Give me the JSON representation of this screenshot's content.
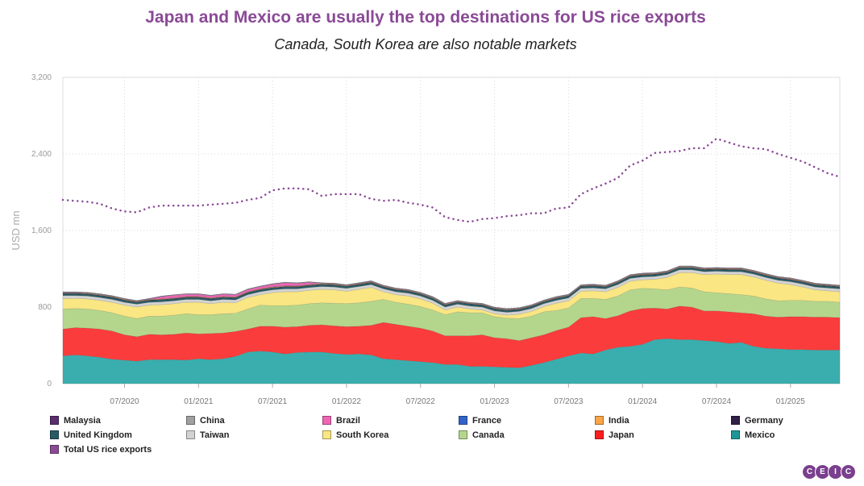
{
  "header": {
    "title": "Japan and Mexico are usually the top destinations for US rice exports",
    "subtitle": "Canada, South Korea are also notable markets"
  },
  "logo": [
    "C",
    "E",
    "I",
    "C"
  ],
  "chart_data": {
    "type": "area",
    "stacked": true,
    "ylabel": "USD mn",
    "ylim": [
      0,
      3200
    ],
    "yticks": [
      0,
      800,
      1600,
      2400,
      3200
    ],
    "ytick_labels": [
      "0",
      "800",
      "1,600",
      "2,400",
      "3,200"
    ],
    "xlim": [
      "2020-02",
      "2025-05"
    ],
    "xticks": [
      "07/2020",
      "01/2021",
      "07/2021",
      "01/2022",
      "07/2022",
      "01/2023",
      "07/2023",
      "01/2024",
      "07/2024",
      "01/2025"
    ],
    "grid": true,
    "legend_position": "bottom",
    "x": [
      "2020-02",
      "2020-03",
      "2020-04",
      "2020-05",
      "2020-06",
      "2020-07",
      "2020-08",
      "2020-09",
      "2020-10",
      "2020-11",
      "2020-12",
      "2021-01",
      "2021-02",
      "2021-03",
      "2021-04",
      "2021-05",
      "2021-06",
      "2021-07",
      "2021-08",
      "2021-09",
      "2021-10",
      "2021-11",
      "2021-12",
      "2022-01",
      "2022-02",
      "2022-03",
      "2022-04",
      "2022-05",
      "2022-06",
      "2022-07",
      "2022-08",
      "2022-09",
      "2022-10",
      "2022-11",
      "2022-12",
      "2023-01",
      "2023-02",
      "2023-03",
      "2023-04",
      "2023-05",
      "2023-06",
      "2023-07",
      "2023-08",
      "2023-09",
      "2023-10",
      "2023-11",
      "2023-12",
      "2024-01",
      "2024-02",
      "2024-03",
      "2024-04",
      "2024-05",
      "2024-06",
      "2024-07",
      "2024-08",
      "2024-09",
      "2024-10",
      "2024-11",
      "2024-12",
      "2025-01",
      "2025-02",
      "2025-03",
      "2025-04",
      "2025-05"
    ],
    "series": [
      {
        "name": "Mexico",
        "color": "#3aaeae",
        "values": [
          290,
          300,
          290,
          275,
          255,
          245,
          235,
          250,
          250,
          250,
          245,
          260,
          250,
          260,
          285,
          330,
          340,
          330,
          310,
          325,
          330,
          330,
          315,
          305,
          310,
          300,
          260,
          250,
          240,
          230,
          220,
          200,
          200,
          180,
          180,
          175,
          170,
          165,
          190,
          220,
          255,
          290,
          320,
          310,
          350,
          380,
          390,
          410,
          460,
          470,
          460,
          460,
          450,
          440,
          420,
          430,
          390,
          370,
          365,
          355,
          355,
          350,
          350,
          350
        ]
      },
      {
        "name": "Japan",
        "color": "#fa3c3c",
        "values": [
          280,
          285,
          290,
          295,
          295,
          265,
          255,
          265,
          260,
          265,
          285,
          260,
          275,
          270,
          260,
          240,
          260,
          270,
          280,
          270,
          280,
          285,
          290,
          290,
          290,
          310,
          380,
          370,
          360,
          350,
          330,
          300,
          300,
          320,
          330,
          305,
          300,
          285,
          290,
          290,
          300,
          300,
          370,
          390,
          330,
          330,
          370,
          375,
          330,
          310,
          350,
          340,
          310,
          320,
          330,
          310,
          340,
          335,
          330,
          345,
          345,
          345,
          345,
          340
        ]
      },
      {
        "name": "Canada",
        "color": "#b4d68c",
        "values": [
          210,
          200,
          200,
          195,
          190,
          195,
          190,
          190,
          195,
          200,
          200,
          200,
          195,
          200,
          190,
          210,
          220,
          215,
          225,
          225,
          225,
          230,
          235,
          240,
          245,
          250,
          240,
          230,
          230,
          225,
          220,
          220,
          250,
          240,
          230,
          220,
          215,
          230,
          225,
          240,
          210,
          200,
          200,
          190,
          200,
          205,
          220,
          210,
          200,
          200,
          200,
          200,
          200,
          190,
          190,
          190,
          185,
          180,
          170,
          170,
          170,
          165,
          165,
          160
        ]
      },
      {
        "name": "South Korea",
        "color": "#fae682",
        "values": [
          110,
          105,
          105,
          105,
          110,
          115,
          120,
          115,
          120,
          120,
          120,
          130,
          115,
          120,
          110,
          120,
          110,
          135,
          145,
          140,
          140,
          140,
          140,
          130,
          140,
          145,
          80,
          80,
          85,
          80,
          70,
          50,
          50,
          40,
          30,
          30,
          30,
          45,
          50,
          55,
          75,
          75,
          75,
          80,
          80,
          90,
          90,
          90,
          100,
          130,
          150,
          160,
          180,
          195,
          200,
          210,
          200,
          195,
          185,
          165,
          140,
          120,
          110,
          110
        ]
      },
      {
        "name": "Taiwan",
        "color": "#d2d2d2",
        "values": [
          30,
          30,
          30,
          30,
          30,
          30,
          30,
          30,
          30,
          30,
          30,
          30,
          30,
          30,
          30,
          30,
          30,
          30,
          30,
          30,
          30,
          30,
          30,
          30,
          30,
          30,
          30,
          30,
          30,
          30,
          30,
          30,
          30,
          30,
          30,
          30,
          30,
          30,
          30,
          30,
          30,
          30,
          30,
          30,
          30,
          30,
          30,
          30,
          30,
          30,
          30,
          30,
          30,
          30,
          30,
          30,
          30,
          30,
          30,
          30,
          30,
          30,
          30,
          30
        ]
      },
      {
        "name": "United Kingdom",
        "color": "#285a64",
        "values": [
          20,
          20,
          20,
          20,
          20,
          20,
          20,
          20,
          20,
          20,
          20,
          20,
          20,
          20,
          20,
          20,
          20,
          20,
          20,
          20,
          20,
          20,
          20,
          20,
          20,
          20,
          20,
          20,
          20,
          20,
          20,
          20,
          20,
          20,
          20,
          20,
          20,
          20,
          20,
          20,
          20,
          20,
          20,
          20,
          20,
          20,
          20,
          20,
          20,
          20,
          20,
          20,
          20,
          20,
          20,
          20,
          20,
          20,
          20,
          20,
          20,
          20,
          20,
          20
        ]
      },
      {
        "name": "Germany",
        "color": "#321e46",
        "values": [
          5,
          5,
          5,
          5,
          5,
          5,
          5,
          5,
          5,
          5,
          5,
          5,
          5,
          5,
          5,
          5,
          5,
          5,
          5,
          5,
          5,
          5,
          5,
          5,
          5,
          5,
          5,
          5,
          5,
          5,
          5,
          5,
          5,
          5,
          5,
          5,
          5,
          5,
          5,
          5,
          5,
          5,
          5,
          5,
          5,
          5,
          5,
          5,
          5,
          5,
          5,
          5,
          5,
          5,
          5,
          5,
          5,
          5,
          5,
          5,
          5,
          5,
          5,
          5
        ]
      },
      {
        "name": "India",
        "color": "#faa546",
        "values": [
          5,
          5,
          5,
          5,
          5,
          5,
          5,
          5,
          5,
          5,
          5,
          5,
          5,
          5,
          5,
          5,
          5,
          5,
          5,
          5,
          5,
          5,
          5,
          5,
          5,
          5,
          5,
          5,
          5,
          5,
          5,
          5,
          5,
          5,
          5,
          5,
          5,
          5,
          5,
          5,
          5,
          5,
          5,
          5,
          5,
          5,
          5,
          5,
          5,
          5,
          5,
          5,
          5,
          5,
          5,
          5,
          5,
          5,
          5,
          5,
          5,
          5,
          5,
          5
        ]
      },
      {
        "name": "France",
        "color": "#3264c8",
        "values": [
          2,
          2,
          2,
          2,
          2,
          2,
          2,
          2,
          2,
          2,
          2,
          2,
          2,
          2,
          2,
          2,
          2,
          2,
          2,
          2,
          2,
          2,
          2,
          2,
          2,
          2,
          2,
          2,
          2,
          2,
          2,
          2,
          2,
          2,
          2,
          2,
          2,
          2,
          2,
          2,
          2,
          2,
          2,
          2,
          2,
          2,
          2,
          2,
          2,
          2,
          2,
          2,
          2,
          2,
          2,
          2,
          2,
          2,
          2,
          2,
          2,
          2,
          2,
          2
        ]
      },
      {
        "name": "Brazil",
        "color": "#f064b4",
        "values": [
          0,
          0,
          0,
          0,
          0,
          0,
          0,
          0,
          20,
          25,
          20,
          20,
          20,
          20,
          20,
          20,
          20,
          25,
          30,
          25,
          20,
          0,
          0,
          0,
          0,
          0,
          0,
          0,
          0,
          0,
          0,
          0,
          0,
          0,
          0,
          0,
          0,
          0,
          0,
          0,
          0,
          0,
          0,
          0,
          0,
          0,
          0,
          0,
          0,
          0,
          0,
          0,
          0,
          0,
          0,
          0,
          0,
          0,
          0,
          0,
          0,
          0,
          0,
          0
        ]
      },
      {
        "name": "China",
        "color": "#a0a0a0",
        "values": [
          5,
          5,
          5,
          5,
          5,
          5,
          5,
          5,
          5,
          5,
          5,
          5,
          5,
          5,
          5,
          5,
          5,
          5,
          5,
          5,
          5,
          5,
          5,
          5,
          5,
          5,
          5,
          5,
          5,
          5,
          5,
          5,
          5,
          5,
          5,
          5,
          5,
          5,
          5,
          5,
          5,
          5,
          5,
          5,
          5,
          5,
          5,
          5,
          5,
          5,
          5,
          5,
          5,
          5,
          5,
          5,
          5,
          5,
          5,
          5,
          5,
          5,
          5,
          5
        ]
      },
      {
        "name": "Malaysia",
        "color": "#5a2d6e",
        "values": [
          3,
          3,
          3,
          3,
          3,
          3,
          3,
          3,
          3,
          3,
          3,
          3,
          3,
          3,
          3,
          3,
          3,
          3,
          3,
          3,
          3,
          3,
          3,
          3,
          3,
          3,
          3,
          3,
          3,
          3,
          3,
          3,
          3,
          3,
          3,
          3,
          3,
          3,
          3,
          3,
          3,
          3,
          3,
          3,
          3,
          3,
          3,
          3,
          3,
          3,
          3,
          3,
          3,
          3,
          3,
          3,
          3,
          3,
          3,
          3,
          3,
          3,
          3,
          3
        ]
      }
    ],
    "total": {
      "name": "Total US rice exports",
      "color": "#8a4a96",
      "style": "dotted",
      "values": [
        1920,
        1910,
        1900,
        1880,
        1830,
        1800,
        1790,
        1840,
        1860,
        1860,
        1860,
        1860,
        1870,
        1880,
        1890,
        1920,
        1940,
        2020,
        2040,
        2040,
        2030,
        1960,
        1980,
        1980,
        1980,
        1930,
        1910,
        1920,
        1890,
        1870,
        1840,
        1740,
        1710,
        1690,
        1720,
        1730,
        1750,
        1760,
        1780,
        1780,
        1830,
        1840,
        1980,
        2040,
        2090,
        2150,
        2280,
        2330,
        2410,
        2420,
        2430,
        2460,
        2460,
        2560,
        2520,
        2480,
        2460,
        2450,
        2400,
        2360,
        2320,
        2260,
        2200,
        2160
      ]
    }
  },
  "legend_order": [
    "Malaysia",
    "China",
    "Brazil",
    "France",
    "India",
    "Germany",
    "United Kingdom",
    "Taiwan",
    "South Korea",
    "Canada",
    "Japan",
    "Mexico",
    "Total US rice exports"
  ],
  "legend_colors": {
    "Malaysia": "#5a2d6e",
    "China": "#a0a0a0",
    "Brazil": "#f064b4",
    "France": "#3264c8",
    "India": "#faa546",
    "Germany": "#321e46",
    "United Kingdom": "#285a64",
    "Taiwan": "#d2d2d2",
    "South Korea": "#fae682",
    "Canada": "#b4d68c",
    "Japan": "#fa1e1e",
    "Mexico": "#1e9696",
    "Total US rice exports": "#8a4a96"
  }
}
